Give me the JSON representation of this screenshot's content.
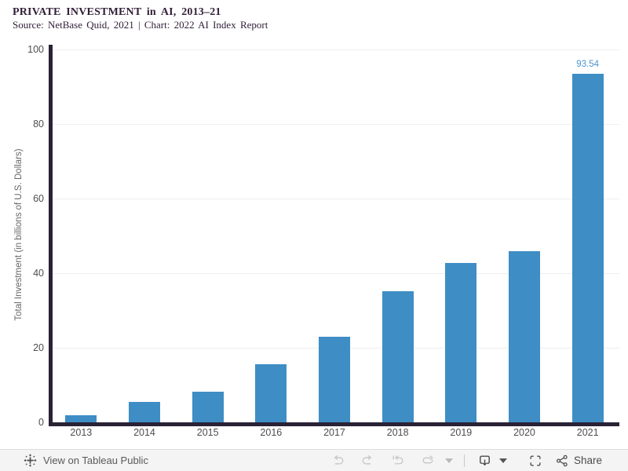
{
  "header": {
    "title": "PRIVATE INVESTMENT in AI, 2013–21",
    "subtitle": "Source: NetBase Quid, 2021 | Chart: 2022 AI Index Report"
  },
  "chart_data": {
    "type": "bar",
    "title": "PRIVATE INVESTMENT in AI, 2013–21",
    "subtitle": "Source: NetBase Quid, 2021 | Chart: 2022 AI Index Report",
    "categories": [
      "2013",
      "2014",
      "2015",
      "2016",
      "2017",
      "2018",
      "2019",
      "2020",
      "2021"
    ],
    "values": [
      2.0,
      5.4,
      8.3,
      15.5,
      23.0,
      35.2,
      42.7,
      45.9,
      93.54
    ],
    "labeled_value": {
      "category": "2021",
      "text": "93.54"
    },
    "xlabel": "",
    "ylabel": "Total Investment (in billions of U.S. Dollars)",
    "ylim": [
      0,
      100
    ],
    "yticks": [
      0,
      20,
      40,
      60,
      80,
      100
    ],
    "grid": true,
    "legend": "none",
    "bar_color": "#3e8dc5",
    "value_label_color": "#4d94ce"
  },
  "toolbar": {
    "view_label": "View on Tableau Public",
    "share_label": "Share",
    "icons": [
      "tableau-logo",
      "undo",
      "redo",
      "replay",
      "refresh",
      "caret-down",
      "download",
      "caret-down",
      "fullscreen",
      "share"
    ]
  },
  "colors": {
    "axis_line": "#2a2235",
    "title_text": "#33203a",
    "toolbar_bg": "#f4f4f4",
    "icon_disabled": "#c6c6c6",
    "icon_enabled": "#4b4b4b"
  }
}
